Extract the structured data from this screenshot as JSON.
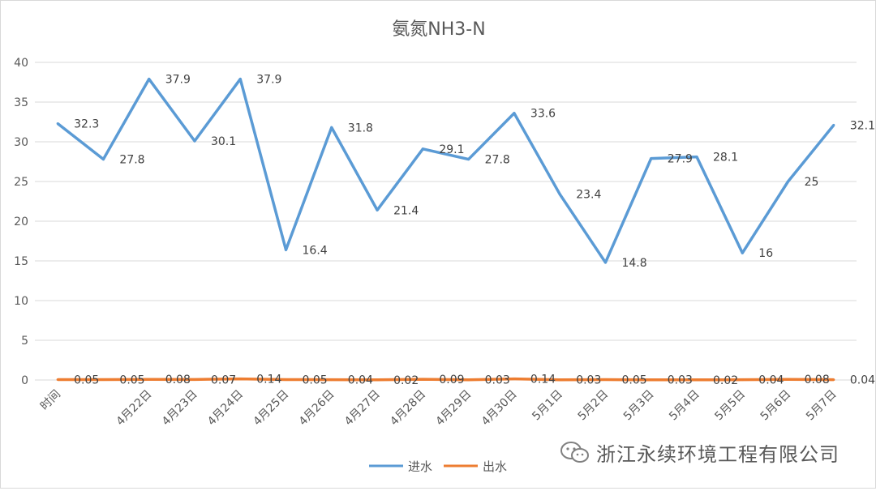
{
  "chart_data": {
    "type": "line",
    "title": "氨氮NH3-N",
    "categories": [
      "时间",
      "",
      "4月22日",
      "4月23日",
      "4月24日",
      "4月25日",
      "4月26日",
      "4月27日",
      "4月28日",
      "4月29日",
      "4月30日",
      "5月1日",
      "5月2日",
      "5月3日",
      "5月4日",
      "5月5日",
      "5月6日",
      "5月7日"
    ],
    "series": [
      {
        "name": "进水",
        "color": "#5b9bd5",
        "values": [
          32.3,
          27.8,
          37.9,
          30.1,
          37.9,
          16.4,
          31.8,
          21.4,
          29.1,
          27.8,
          33.6,
          23.4,
          14.8,
          27.9,
          28.1,
          16,
          25,
          32.1
        ],
        "labels": [
          "32.3",
          "27.8",
          "37.9",
          "30.1",
          "37.9",
          "16.4",
          "31.8",
          "21.4",
          "29.1",
          "27.8",
          "33.6",
          "23.4",
          "14.8",
          "27.9",
          "28.1",
          "16",
          "25",
          "32.1"
        ]
      },
      {
        "name": "出水",
        "color": "#ed7d31",
        "values": [
          0.05,
          0.05,
          0.08,
          0.07,
          0.14,
          0.05,
          0.04,
          0.02,
          0.09,
          0.03,
          0.14,
          0.03,
          0.05,
          0.03,
          0.02,
          0.04,
          0.08,
          0.04
        ],
        "labels": [
          "0.05",
          "0.05",
          "0.08",
          "0.07",
          "0.14",
          "0.05",
          "0.04",
          "0.02",
          "0.09",
          "0.03",
          "0.14",
          "0.03",
          "0.05",
          "0.03",
          "0.02",
          "0.04",
          "0.08",
          "0.04"
        ]
      }
    ],
    "yticks": [
      "0",
      "5",
      "10",
      "15",
      "20",
      "25",
      "30",
      "35",
      "40"
    ],
    "ylim": [
      0,
      40
    ],
    "grid": true,
    "legend": "bottom"
  },
  "watermark": {
    "text": "浙江永续环境工程有限公司",
    "icon": "wechat-icon"
  }
}
